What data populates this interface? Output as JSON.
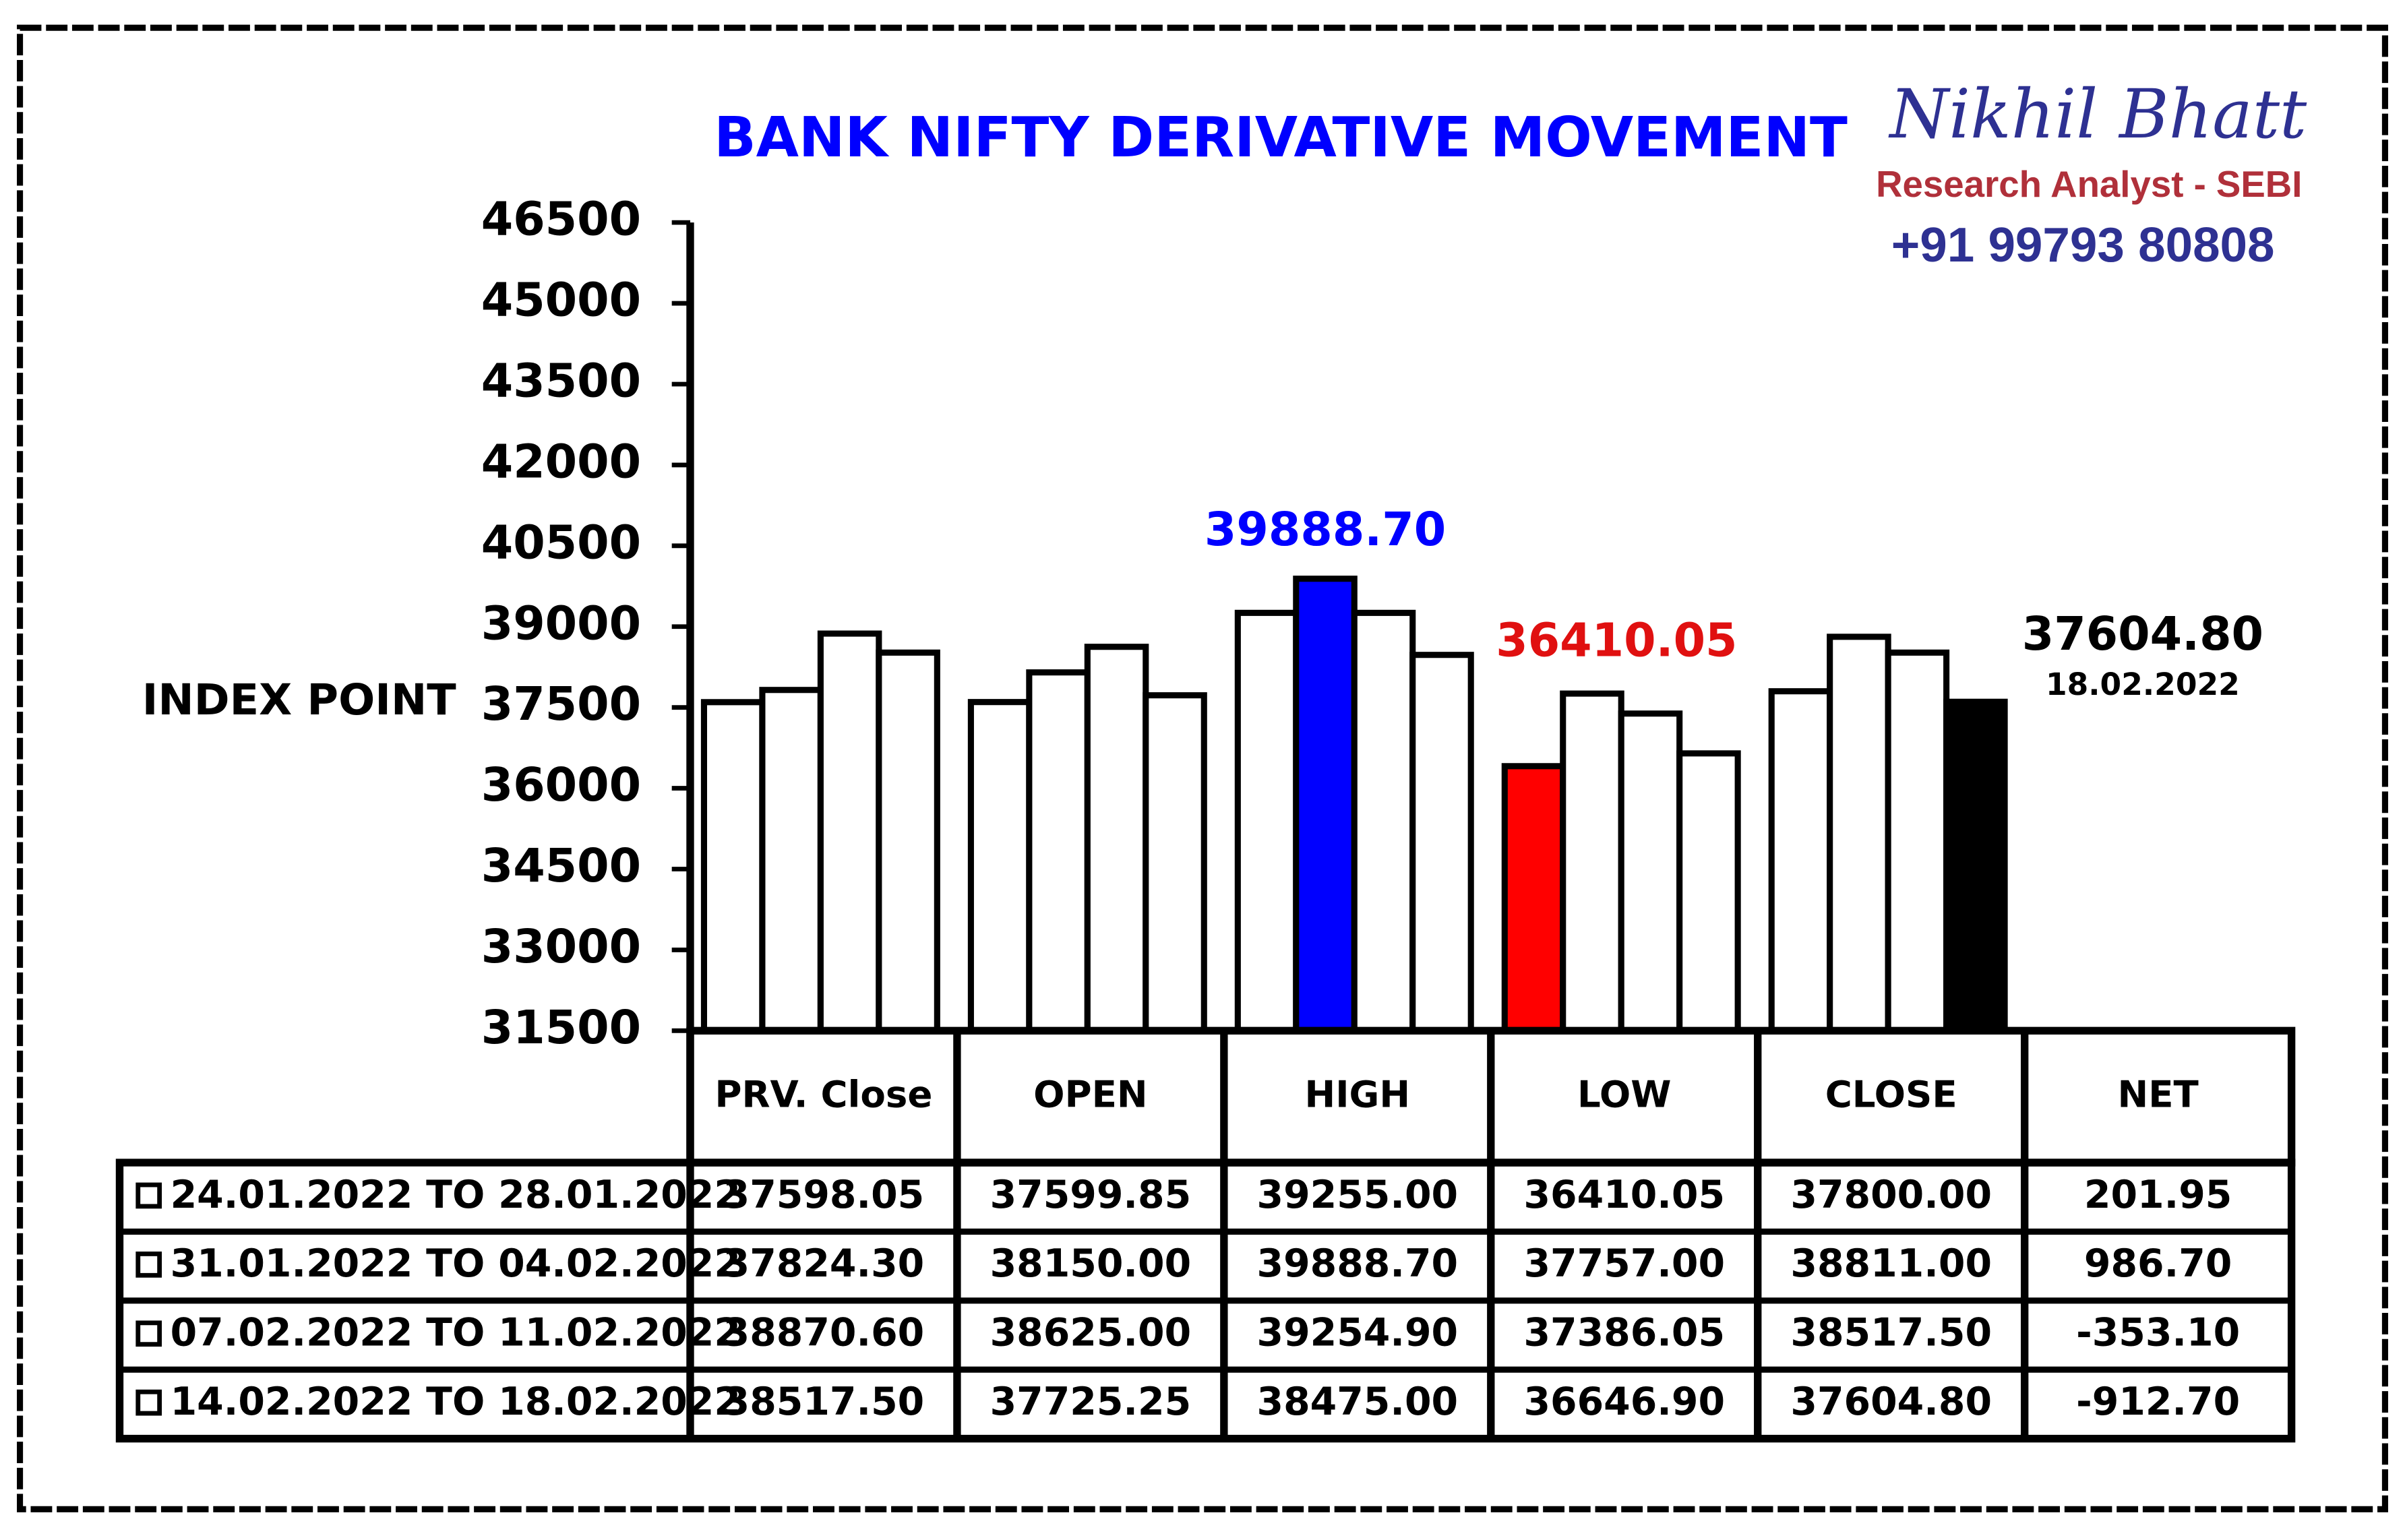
{
  "chart_data": {
    "type": "bar",
    "title": "BANK NIFTY DERIVATIVE MOVEMENT",
    "y_label": "INDEX POINT",
    "author": "Nikhil Bhatt",
    "author_role": "Research Analyst - SEBI",
    "author_phone": "+91 99793 80808",
    "categories": [
      "PRV. Close",
      "OPEN",
      "HIGH",
      "LOW",
      "CLOSE"
    ],
    "net_header": "NET",
    "ylim": [
      31500,
      46500
    ],
    "yticks": [
      31500,
      33000,
      34500,
      36000,
      37500,
      39000,
      40500,
      42000,
      43500,
      45000,
      46500
    ],
    "annotation": "18.02.2022",
    "series": [
      {
        "name": "24.01.2022 TO 28.01.2022",
        "values": [
          37598.05,
          37599.85,
          39255,
          36410.05,
          37800
        ],
        "value_labels": [
          "37598.05",
          "37599.85",
          "39255.00",
          "36410.05",
          "37800.00"
        ],
        "net": "201.95",
        "colors": [
          "#ffffff",
          "#ffffff",
          "#ffffff",
          "#ff0000",
          "#ffffff"
        ]
      },
      {
        "name": "31.01.2022 TO 04.02.2022",
        "values": [
          37824.3,
          38150,
          39888.7,
          37757,
          38811
        ],
        "value_labels": [
          "37824.30",
          "38150.00",
          "39888.70",
          "37757.00",
          "38811.00"
        ],
        "net": "986.70",
        "colors": [
          "#ffffff",
          "#ffffff",
          "#0000ff",
          "#ffffff",
          "#ffffff"
        ]
      },
      {
        "name": "07.02.2022 TO 11.02.2022",
        "values": [
          38870.6,
          38625,
          39254.9,
          37386.05,
          38517.5
        ],
        "value_labels": [
          "38870.60",
          "38625.00",
          "39254.90",
          "37386.05",
          "38517.50"
        ],
        "net": "-353.10",
        "colors": [
          "#ffffff",
          "#ffffff",
          "#ffffff",
          "#ffffff",
          "#ffffff"
        ]
      },
      {
        "name": "14.02.2022 TO 18.02.2022",
        "values": [
          38517.5,
          37725.25,
          38475,
          36646.9,
          37604.8
        ],
        "value_labels": [
          "38517.50",
          "37725.25",
          "38475.00",
          "36646.90",
          "37604.80"
        ],
        "net": "-912.70",
        "colors": [
          "#ffffff",
          "#ffffff",
          "#ffffff",
          "#ffffff",
          "#000000"
        ]
      }
    ]
  }
}
